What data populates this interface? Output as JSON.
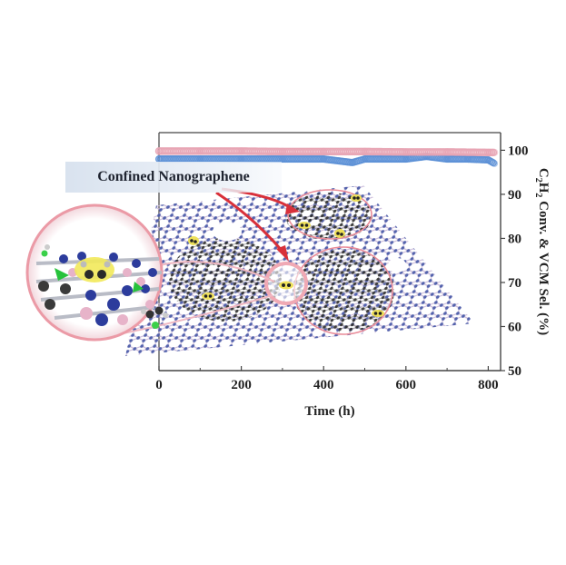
{
  "figure": {
    "callout_label": "Confined Nanographene",
    "colors": {
      "conversion_series": "#5b8fd6",
      "selectivity_series": "#e8a4b4",
      "axis": "#333333",
      "arrow": "#d8303a",
      "highlight_circle": "#e98b98",
      "graphene_node": "#4455a6",
      "graphene_bond": "#c7b4d4",
      "nanographene_node": "#2b2b2b",
      "adsorbate_highlight": "#e9e23a",
      "chlorine_atom": "#3bd04a"
    }
  },
  "chart_data": {
    "type": "scatter",
    "title": "",
    "xlabel": "Time (h)",
    "ylabel": "C2H2 Conv. & VCM Sel. (%)",
    "ylabel_parts": {
      "c": "C",
      "sub1": "2",
      "h": "H",
      "sub2": "2",
      "rest": " Conv. & VCM Sel. (%)"
    },
    "xlim": [
      0,
      830
    ],
    "ylim": [
      50,
      104
    ],
    "x_ticks": [
      0,
      200,
      400,
      600,
      800
    ],
    "x_tick_labels": [
      "0",
      "200",
      "400",
      "600",
      "800"
    ],
    "y_ticks": [
      50,
      60,
      70,
      80,
      90,
      100
    ],
    "y_tick_labels": [
      "50",
      "60",
      "70",
      "80",
      "90",
      "100"
    ],
    "y_axis_position": "right",
    "grid": false,
    "legend": null,
    "series": [
      {
        "name": "C2H2 Conversion",
        "color": "#5b8fd6",
        "x": [
          0,
          100,
          200,
          300,
          400,
          470,
          500,
          600,
          650,
          700,
          750,
          800,
          815
        ],
        "y": [
          98.0,
          98.0,
          98.0,
          98.0,
          98.0,
          97.2,
          98.0,
          98.0,
          98.6,
          98.0,
          98.0,
          97.8,
          97.0
        ]
      },
      {
        "name": "VCM Selectivity",
        "color": "#e8a4b4",
        "x": [
          0,
          100,
          200,
          300,
          400,
          500,
          600,
          700,
          800,
          815
        ],
        "y": [
          99.8,
          99.8,
          99.8,
          99.7,
          99.7,
          99.7,
          99.6,
          99.6,
          99.5,
          99.5
        ]
      }
    ]
  }
}
